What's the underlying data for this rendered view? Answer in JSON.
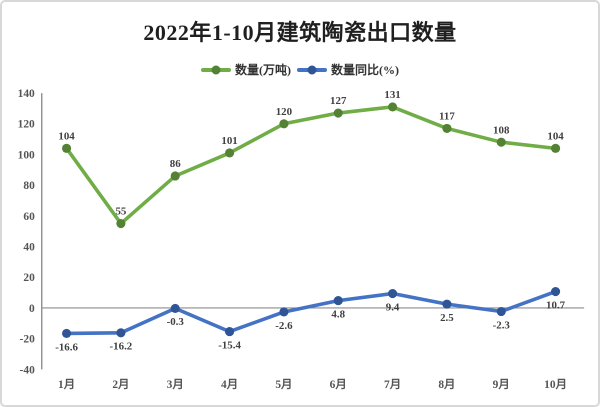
{
  "window": {
    "background": "#ffffff",
    "border_color": "#d8d8d8"
  },
  "chart_data": {
    "type": "line",
    "title": "2022年1-10月建筑陶瓷出口数量",
    "categories": [
      "1月",
      "2月",
      "3月",
      "4月",
      "5月",
      "6月",
      "7月",
      "8月",
      "9月",
      "10月"
    ],
    "series": [
      {
        "name": "数量(万吨)",
        "values": [
          104,
          55,
          86,
          101,
          120,
          127,
          131,
          117,
          108,
          104
        ],
        "color": "#70AD47",
        "marker_color": "#548235",
        "label_position": "above"
      },
      {
        "name": "数量同比(%)",
        "values": [
          -16.6,
          -16.2,
          -0.3,
          -15.4,
          -2.6,
          4.8,
          9.4,
          2.5,
          -2.3,
          10.7
        ],
        "color": "#4472C4",
        "marker_color": "#2F5597",
        "label_position": "below"
      }
    ],
    "ylim": [
      -40,
      140
    ],
    "ytick_step": 20,
    "yticks": [
      140,
      120,
      100,
      80,
      60,
      40,
      20,
      0,
      -20,
      -40
    ],
    "grid": "zero-line-only",
    "legend_position": "top-center",
    "data_labels": true,
    "colors": {
      "axis_line": "#8e8e8e",
      "data_label": "#404040",
      "axis_label": "#545454",
      "title": "#1f1f1f"
    }
  }
}
